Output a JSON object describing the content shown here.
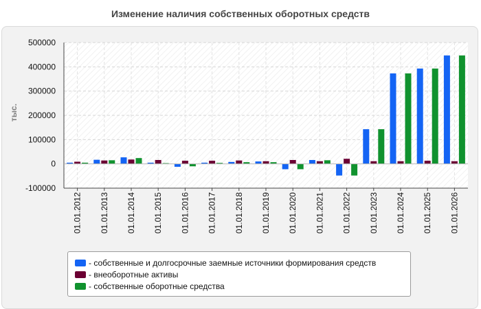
{
  "chart_data": {
    "type": "bar",
    "title": "Изменение наличия собственных оборотных средств",
    "xlabel": "",
    "ylabel": "тыс.",
    "ylim": [
      -100000,
      500000
    ],
    "yticks": [
      500000,
      400000,
      300000,
      200000,
      100000,
      0,
      -100000
    ],
    "grid": true,
    "legend_position": "bottom",
    "categories": [
      "01.01.2012",
      "01.01.2013",
      "01.01.2014",
      "01.01.2015",
      "01.01.2016",
      "01.01.2017",
      "01.01.2018",
      "01.01.2019",
      "01.01.2020",
      "01.01.2021",
      "01.01.2022",
      "01.01.2023",
      "01.01.2024",
      "01.01.2025",
      "01.01.2026"
    ],
    "series": [
      {
        "name": "собственные и долгосрочные заемные источники формирования средств",
        "color": "#1464f4",
        "values": [
          5000,
          17000,
          27000,
          5000,
          -12000,
          5000,
          8000,
          10000,
          -22000,
          16000,
          -48000,
          143000,
          373000,
          393000,
          447000
        ]
      },
      {
        "name": "внеоборотные активы",
        "color": "#6b0033",
        "values": [
          9000,
          14000,
          18000,
          16000,
          13000,
          13000,
          14000,
          11000,
          16000,
          11000,
          21000,
          11000,
          11000,
          13000,
          11000
        ]
      },
      {
        "name": "собственные оборотные средства",
        "color": "#10922e",
        "values": [
          5000,
          15000,
          24000,
          3000,
          -10000,
          4000,
          7000,
          7000,
          -22000,
          15000,
          -48000,
          143000,
          373000,
          393000,
          447000
        ]
      }
    ]
  },
  "legend": {
    "items": [
      "- собственные и долгосрочные заемные источники формирования средств",
      "- внеоборотные активы",
      "- собственные оборотные средства"
    ]
  }
}
